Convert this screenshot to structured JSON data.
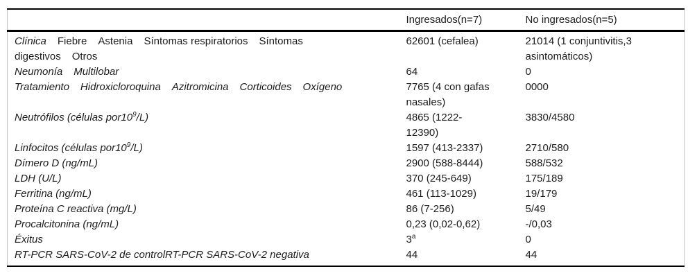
{
  "table": {
    "headers": [
      "",
      "Ingresados(n=7)",
      "No ingresados(n=5)"
    ],
    "colors": {
      "rule": "#000000",
      "side_border": "#c9c9c9",
      "text": "#1c1c1c",
      "background": "#ffffff"
    },
    "rows": [
      {
        "cells": [
          [
            {
              "t": "Clínica",
              "i": 1
            },
            {
              "t": "Fiebre",
              "g": 1
            },
            {
              "t": "Astenia",
              "g": 1
            },
            {
              "t": "Síntomas respiratorios",
              "g": 1
            },
            {
              "t": "Síntomas",
              "g": 1
            },
            {
              "t": "digestivos",
              "br": 1
            },
            {
              "t": "Otros",
              "g": 1
            }
          ],
          [
            {
              "t": "62601 (cefalea)"
            }
          ],
          [
            {
              "t": "21014 (1 conjuntivitis,3"
            },
            {
              "t": "asintomáticos)",
              "br": 1
            }
          ]
        ]
      },
      {
        "cells": [
          [
            {
              "t": "Neumonía",
              "i": 1
            },
            {
              "t": "Multilobar",
              "i": 1,
              "g": 1
            }
          ],
          [
            {
              "t": "64"
            }
          ],
          [
            {
              "t": "0"
            }
          ]
        ]
      },
      {
        "cells": [
          [
            {
              "t": "Tratamiento",
              "i": 1
            },
            {
              "t": "Hidroxicloroquina",
              "i": 1,
              "g": 1
            },
            {
              "t": "Azitromicina",
              "i": 1,
              "g": 1
            },
            {
              "t": "Corticoides",
              "i": 1,
              "g": 1
            },
            {
              "t": "Oxígeno",
              "i": 1,
              "g": 1
            }
          ],
          [
            {
              "t": "7765 (4 con gafas"
            },
            {
              "t": "nasales)",
              "br": 1
            }
          ],
          [
            {
              "t": "0000"
            }
          ]
        ]
      },
      {
        "cells": [
          [
            {
              "t": "Neutrófilos (células por10",
              "i": 1
            },
            {
              "t": "9",
              "i": 1,
              "s": 1
            },
            {
              "t": "/L)",
              "i": 1
            }
          ],
          [
            {
              "t": "4865 (1222-"
            },
            {
              "t": "12390)",
              "br": 1
            }
          ],
          [
            {
              "t": "3830/4580"
            }
          ]
        ]
      },
      {
        "cells": [
          [
            {
              "t": "Linfocitos (células por10",
              "i": 1
            },
            {
              "t": "9",
              "i": 1,
              "s": 1
            },
            {
              "t": "/L)",
              "i": 1
            }
          ],
          [
            {
              "t": "1597 (413-2337)"
            }
          ],
          [
            {
              "t": "2710/580"
            }
          ]
        ]
      },
      {
        "cells": [
          [
            {
              "t": "Dímero D (ng/mL)",
              "i": 1
            }
          ],
          [
            {
              "t": "2900 (588-8444)"
            }
          ],
          [
            {
              "t": "588/532"
            }
          ]
        ]
      },
      {
        "cells": [
          [
            {
              "t": "LDH (U/L)",
              "i": 1
            }
          ],
          [
            {
              "t": "370 (245-649)"
            }
          ],
          [
            {
              "t": "175/189"
            }
          ]
        ]
      },
      {
        "cells": [
          [
            {
              "t": "Ferritina (ng/mL)",
              "i": 1
            }
          ],
          [
            {
              "t": "461 (113-1029)"
            }
          ],
          [
            {
              "t": "19/179"
            }
          ]
        ]
      },
      {
        "cells": [
          [
            {
              "t": "Proteína C reactiva (mg/L)",
              "i": 1
            }
          ],
          [
            {
              "t": "86 (7-256)"
            }
          ],
          [
            {
              "t": "5/49"
            }
          ]
        ]
      },
      {
        "cells": [
          [
            {
              "t": "Procalcitonina (ng/mL)",
              "i": 1
            }
          ],
          [
            {
              "t": "0,23 (0,02-0,62)"
            }
          ],
          [
            {
              "t": "-/0,03"
            }
          ]
        ]
      },
      {
        "cells": [
          [
            {
              "t": "Éxitus",
              "i": 1
            }
          ],
          [
            {
              "t": "3"
            },
            {
              "t": "a",
              "s": 1
            }
          ],
          [
            {
              "t": "0"
            }
          ]
        ]
      },
      {
        "cells": [
          [
            {
              "t": "RT-PCR SARS-CoV-2 de controlRT-PCR SARS-CoV-2 negativa",
              "i": 1
            }
          ],
          [
            {
              "t": "44"
            }
          ],
          [
            {
              "t": "44"
            }
          ]
        ]
      }
    ]
  }
}
